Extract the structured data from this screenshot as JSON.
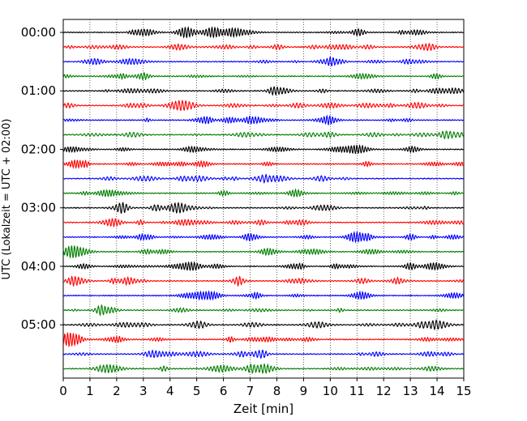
{
  "chart_data": {
    "type": "line",
    "title": "",
    "xlabel": "Zeit  [min]",
    "ylabel": "UTC (Lokalzeit = UTC + 02:00)",
    "xlim": [
      0,
      15
    ],
    "x_ticks": [
      "0",
      "1",
      "2",
      "3",
      "4",
      "5",
      "6",
      "7",
      "8",
      "9",
      "10",
      "11",
      "12",
      "13",
      "14",
      "15"
    ],
    "y_tick_labels": [
      "00:00",
      "01:00",
      "02:00",
      "03:00",
      "04:00",
      "05:00"
    ],
    "trace_interval_min": 15,
    "trace_count": 24,
    "trace_colors": [
      "#000000",
      "#ff0000",
      "#0000ff",
      "#007f00"
    ],
    "vertical_grid": true,
    "grid_style": "dotted",
    "legend": "none"
  }
}
